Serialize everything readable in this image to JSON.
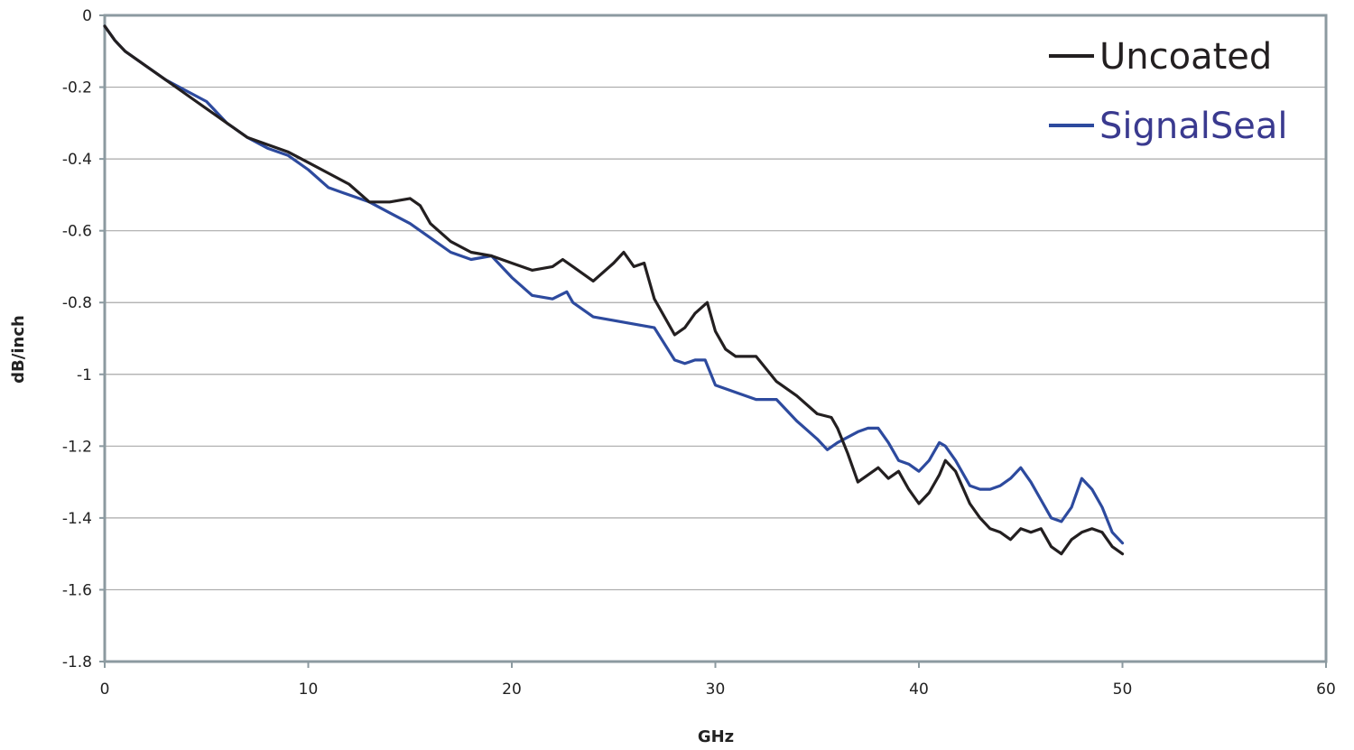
{
  "chart_data": {
    "type": "line",
    "title": "",
    "xlabel": "GHz",
    "ylabel": "dB/inch",
    "xlim": [
      0,
      60
    ],
    "ylim": [
      -1.8,
      0
    ],
    "x_ticks": [
      "0",
      "10",
      "20",
      "30",
      "40",
      "50",
      "60"
    ],
    "y_ticks": [
      "0",
      "-0.2",
      "-0.4",
      "-0.6",
      "-0.8",
      "-1",
      "-1.2",
      "-1.4",
      "-1.6",
      "-1.8"
    ],
    "grid": true,
    "legend_position": "top-right",
    "series": [
      {
        "name": "Uncoated",
        "color": "#231f20",
        "x": [
          0,
          0.5,
          1,
          2,
          3,
          4,
          5,
          6,
          7,
          8,
          9,
          10,
          11,
          12,
          13,
          14,
          15,
          15.5,
          16,
          17,
          18,
          19,
          20,
          21,
          22,
          22.5,
          23,
          24,
          25,
          25.5,
          26,
          26.5,
          27,
          28,
          28.5,
          29,
          29.6,
          30,
          30.5,
          31,
          32,
          33,
          34,
          35,
          35.7,
          36,
          36.5,
          37,
          37.5,
          38,
          38.5,
          39,
          39.5,
          40,
          40.5,
          41,
          41.3,
          41.8,
          42.5,
          43,
          43.5,
          44,
          44.5,
          45,
          45.5,
          46,
          46.5,
          47,
          47.5,
          48,
          48.5,
          49,
          49.5,
          50
        ],
        "y": [
          -0.03,
          -0.07,
          -0.1,
          -0.14,
          -0.18,
          -0.22,
          -0.26,
          -0.3,
          -0.34,
          -0.36,
          -0.38,
          -0.41,
          -0.44,
          -0.47,
          -0.52,
          -0.52,
          -0.51,
          -0.53,
          -0.58,
          -0.63,
          -0.66,
          -0.67,
          -0.69,
          -0.71,
          -0.7,
          -0.68,
          -0.7,
          -0.74,
          -0.69,
          -0.66,
          -0.7,
          -0.69,
          -0.79,
          -0.89,
          -0.87,
          -0.83,
          -0.8,
          -0.88,
          -0.93,
          -0.95,
          -0.95,
          -1.02,
          -1.06,
          -1.11,
          -1.12,
          -1.15,
          -1.22,
          -1.3,
          -1.28,
          -1.26,
          -1.29,
          -1.27,
          -1.32,
          -1.36,
          -1.33,
          -1.28,
          -1.24,
          -1.27,
          -1.36,
          -1.4,
          -1.43,
          -1.44,
          -1.46,
          -1.43,
          -1.44,
          -1.43,
          -1.48,
          -1.5,
          -1.46,
          -1.44,
          -1.43,
          -1.44,
          -1.48,
          -1.5
        ]
      },
      {
        "name": "SignalSeal",
        "color": "#2d4a9e",
        "x": [
          0,
          0.5,
          1,
          2,
          3,
          4,
          5,
          6,
          7,
          8,
          9,
          10,
          11,
          12,
          13,
          14,
          15,
          16,
          17,
          18,
          19,
          20,
          21,
          22,
          22.7,
          23,
          24,
          25,
          26,
          27,
          28,
          28.5,
          29,
          29.5,
          30,
          31,
          32,
          33,
          34,
          35,
          35.5,
          36,
          37,
          37.5,
          38,
          38.5,
          39,
          39.5,
          40,
          40.5,
          41,
          41.3,
          41.8,
          42.5,
          43,
          43.5,
          44,
          44.5,
          45,
          45.5,
          46,
          46.5,
          47,
          47.5,
          48,
          48.5,
          49,
          49.5,
          50
        ],
        "y": [
          -0.03,
          -0.07,
          -0.1,
          -0.14,
          -0.18,
          -0.21,
          -0.24,
          -0.3,
          -0.34,
          -0.37,
          -0.39,
          -0.43,
          -0.48,
          -0.5,
          -0.52,
          -0.55,
          -0.58,
          -0.62,
          -0.66,
          -0.68,
          -0.67,
          -0.73,
          -0.78,
          -0.79,
          -0.77,
          -0.8,
          -0.84,
          -0.85,
          -0.86,
          -0.87,
          -0.96,
          -0.97,
          -0.96,
          -0.96,
          -1.03,
          -1.05,
          -1.07,
          -1.07,
          -1.13,
          -1.18,
          -1.21,
          -1.19,
          -1.16,
          -1.15,
          -1.15,
          -1.19,
          -1.24,
          -1.25,
          -1.27,
          -1.24,
          -1.19,
          -1.2,
          -1.24,
          -1.31,
          -1.32,
          -1.32,
          -1.31,
          -1.29,
          -1.26,
          -1.3,
          -1.35,
          -1.4,
          -1.41,
          -1.37,
          -1.29,
          -1.32,
          -1.37,
          -1.44,
          -1.47
        ]
      }
    ]
  }
}
